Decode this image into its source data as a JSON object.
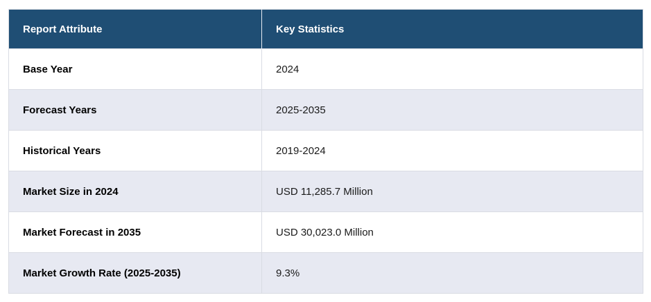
{
  "table": {
    "columns": [
      {
        "label": "Report Attribute"
      },
      {
        "label": "Key Statistics"
      }
    ],
    "rows": [
      {
        "attribute": "Base Year",
        "value": "2024"
      },
      {
        "attribute": "Forecast Years",
        "value": "2025-2035"
      },
      {
        "attribute": "Historical Years",
        "value": "2019-2024"
      },
      {
        "attribute": "Market Size in 2024",
        "value": "USD 11,285.7 Million"
      },
      {
        "attribute": "Market Forecast in 2035",
        "value": "USD 30,023.0 Million"
      },
      {
        "attribute": "Market Growth Rate (2025-2035)",
        "value": "9.3%"
      }
    ],
    "colors": {
      "header_bg": "#1f4e74",
      "header_text": "#ffffff",
      "row_bg": "#ffffff",
      "row_alt_bg": "#e7e9f2",
      "border": "#d9dce3",
      "body_text": "#1a1a1a"
    }
  },
  "chart_data": {
    "type": "table",
    "columns": [
      "Report Attribute",
      "Key Statistics"
    ],
    "rows": [
      [
        "Base Year",
        "2024"
      ],
      [
        "Forecast Years",
        "2025-2035"
      ],
      [
        "Historical Years",
        "2019-2024"
      ],
      [
        "Market Size in 2024",
        "USD 11,285.7 Million"
      ],
      [
        "Market Forecast in 2035",
        "USD 30,023.0 Million"
      ],
      [
        "Market Growth Rate (2025-2035)",
        "9.3%"
      ]
    ]
  }
}
